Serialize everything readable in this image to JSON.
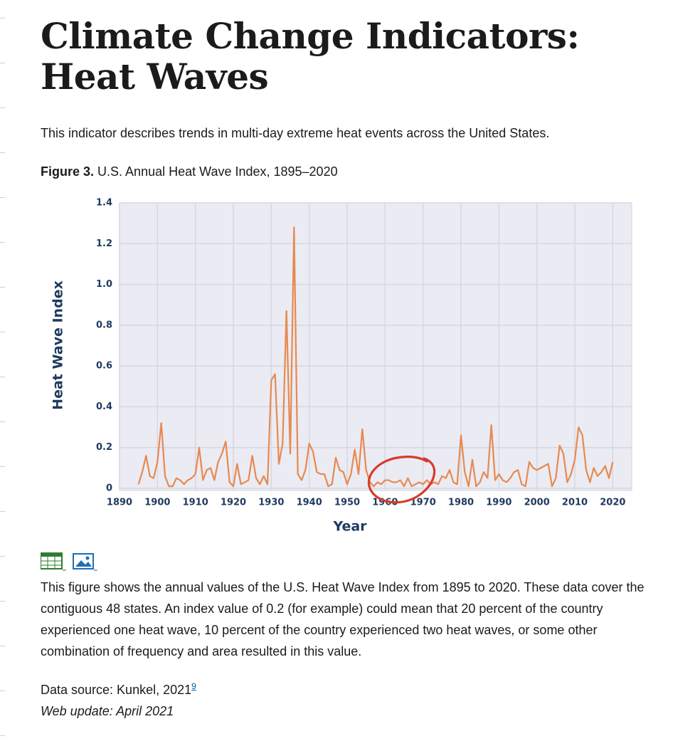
{
  "header": {
    "title": "Climate Change Indicators: Heat Waves"
  },
  "intro": "This indicator describes trends in multi-day extreme heat events across the United States.",
  "figure_label": "Figure 3.",
  "figure_caption": "U.S. Annual Heat Wave Index, 1895–2020",
  "chart_data": {
    "type": "line",
    "y_label": "Heat Wave Index",
    "x_label": "Year",
    "color": "#e8894f",
    "grid": true,
    "xlim": [
      1890,
      2025
    ],
    "ylim": [
      0,
      1.4
    ],
    "xticks": [
      1890,
      1900,
      1910,
      1920,
      1930,
      1940,
      1950,
      1960,
      1970,
      1980,
      1990,
      2000,
      2010,
      2020
    ],
    "yticks": [
      0,
      0.2,
      0.4,
      0.6,
      0.8,
      {
        "value": 1,
        "label": "1.0"
      },
      1.2,
      1.4
    ],
    "x": [
      1895,
      1896,
      1897,
      1898,
      1899,
      1900,
      1901,
      1902,
      1903,
      1904,
      1905,
      1906,
      1907,
      1908,
      1909,
      1910,
      1911,
      1912,
      1913,
      1914,
      1915,
      1916,
      1917,
      1918,
      1919,
      1920,
      1921,
      1922,
      1923,
      1924,
      1925,
      1926,
      1927,
      1928,
      1929,
      1930,
      1931,
      1932,
      1933,
      1934,
      1935,
      1936,
      1937,
      1938,
      1939,
      1940,
      1941,
      1942,
      1943,
      1944,
      1945,
      1946,
      1947,
      1948,
      1949,
      1950,
      1951,
      1952,
      1953,
      1954,
      1955,
      1956,
      1957,
      1958,
      1959,
      1960,
      1961,
      1962,
      1963,
      1964,
      1965,
      1966,
      1967,
      1968,
      1969,
      1970,
      1971,
      1972,
      1973,
      1974,
      1975,
      1976,
      1977,
      1978,
      1979,
      1980,
      1981,
      1982,
      1983,
      1984,
      1985,
      1986,
      1987,
      1988,
      1989,
      1990,
      1991,
      1992,
      1993,
      1994,
      1995,
      1996,
      1997,
      1998,
      1999,
      2000,
      2001,
      2002,
      2003,
      2004,
      2005,
      2006,
      2007,
      2008,
      2009,
      2010,
      2011,
      2012,
      2013,
      2014,
      2015,
      2016,
      2017,
      2018,
      2019,
      2020
    ],
    "values": [
      0.02,
      0.08,
      0.16,
      0.06,
      0.05,
      0.13,
      0.32,
      0.06,
      0.01,
      0.01,
      0.05,
      0.04,
      0.02,
      0.04,
      0.05,
      0.07,
      0.2,
      0.04,
      0.09,
      0.1,
      0.04,
      0.13,
      0.17,
      0.23,
      0.03,
      0.01,
      0.12,
      0.02,
      0.03,
      0.04,
      0.16,
      0.05,
      0.02,
      0.06,
      0.02,
      0.53,
      0.56,
      0.12,
      0.22,
      0.87,
      0.17,
      1.28,
      0.07,
      0.04,
      0.09,
      0.22,
      0.18,
      0.08,
      0.07,
      0.07,
      0.01,
      0.02,
      0.15,
      0.09,
      0.08,
      0.02,
      0.07,
      0.19,
      0.07,
      0.29,
      0.09,
      0.03,
      0.01,
      0.03,
      0.02,
      0.04,
      0.04,
      0.03,
      0.03,
      0.04,
      0.01,
      0.05,
      0.01,
      0.02,
      0.03,
      0.02,
      0.04,
      0.02,
      0.03,
      0.02,
      0.06,
      0.05,
      0.09,
      0.03,
      0.02,
      0.26,
      0.08,
      0.01,
      0.14,
      0.01,
      0.03,
      0.08,
      0.05,
      0.31,
      0.04,
      0.07,
      0.04,
      0.03,
      0.05,
      0.08,
      0.09,
      0.02,
      0.01,
      0.13,
      0.1,
      0.09,
      0.1,
      0.11,
      0.12,
      0.01,
      0.05,
      0.21,
      0.17,
      0.03,
      0.07,
      0.14,
      0.3,
      0.26,
      0.09,
      0.03,
      0.1,
      0.06,
      0.08,
      0.11,
      0.05,
      0.13
    ]
  },
  "description": "This figure shows the annual values of the U.S. Heat Wave Index from 1895 to 2020. These data cover the contiguous 48 states. An index value of 0.2 (for example) could mean that 20 percent of the country experienced one heat wave, 10 percent of the country experienced two heat waves, or some other combination of frequency and area resulted in this value.",
  "source": {
    "text": "Data source: Kunkel, 2021",
    "footnote": "9"
  },
  "update": "Web update: April 2021"
}
